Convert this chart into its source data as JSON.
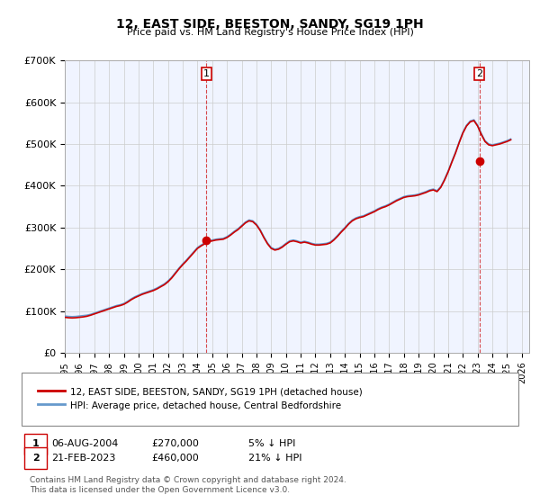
{
  "title": "12, EAST SIDE, BEESTON, SANDY, SG19 1PH",
  "subtitle": "Price paid vs. HM Land Registry's House Price Index (HPI)",
  "ylabel": "",
  "xlabel": "",
  "ylim": [
    0,
    700000
  ],
  "yticks": [
    0,
    100000,
    200000,
    300000,
    400000,
    500000,
    600000,
    700000
  ],
  "ytick_labels": [
    "£0",
    "£100K",
    "£200K",
    "£300K",
    "£400K",
    "£500K",
    "£600K",
    "£700K"
  ],
  "xlim_start": 1995.0,
  "xlim_end": 2026.5,
  "transaction1_x": 2004.6,
  "transaction1_y": 270000,
  "transaction2_x": 2023.12,
  "transaction2_y": 460000,
  "legend_line1": "12, EAST SIDE, BEESTON, SANDY, SG19 1PH (detached house)",
  "legend_line2": "HPI: Average price, detached house, Central Bedfordshire",
  "table_row1": [
    "1",
    "06-AUG-2004",
    "£270,000",
    "5% ↓ HPI"
  ],
  "table_row2": [
    "2",
    "21-FEB-2023",
    "£460,000",
    "21% ↓ HPI"
  ],
  "footnote": "Contains HM Land Registry data © Crown copyright and database right 2024.\nThis data is licensed under the Open Government Licence v3.0.",
  "line_color_red": "#cc0000",
  "line_color_blue": "#6699cc",
  "bg_color": "#f0f4ff",
  "grid_color": "#cccccc",
  "hpi_data_x": [
    1995.0,
    1995.25,
    1995.5,
    1995.75,
    1996.0,
    1996.25,
    1996.5,
    1996.75,
    1997.0,
    1997.25,
    1997.5,
    1997.75,
    1998.0,
    1998.25,
    1998.5,
    1998.75,
    1999.0,
    1999.25,
    1999.5,
    1999.75,
    2000.0,
    2000.25,
    2000.5,
    2000.75,
    2001.0,
    2001.25,
    2001.5,
    2001.75,
    2002.0,
    2002.25,
    2002.5,
    2002.75,
    2003.0,
    2003.25,
    2003.5,
    2003.75,
    2004.0,
    2004.25,
    2004.5,
    2004.75,
    2005.0,
    2005.25,
    2005.5,
    2005.75,
    2006.0,
    2006.25,
    2006.5,
    2006.75,
    2007.0,
    2007.25,
    2007.5,
    2007.75,
    2008.0,
    2008.25,
    2008.5,
    2008.75,
    2009.0,
    2009.25,
    2009.5,
    2009.75,
    2010.0,
    2010.25,
    2010.5,
    2010.75,
    2011.0,
    2011.25,
    2011.5,
    2011.75,
    2012.0,
    2012.25,
    2012.5,
    2012.75,
    2013.0,
    2013.25,
    2013.5,
    2013.75,
    2014.0,
    2014.25,
    2014.5,
    2014.75,
    2015.0,
    2015.25,
    2015.5,
    2015.75,
    2016.0,
    2016.25,
    2016.5,
    2016.75,
    2017.0,
    2017.25,
    2017.5,
    2017.75,
    2018.0,
    2018.25,
    2018.5,
    2018.75,
    2019.0,
    2019.25,
    2019.5,
    2019.75,
    2020.0,
    2020.25,
    2020.5,
    2020.75,
    2021.0,
    2021.25,
    2021.5,
    2021.75,
    2022.0,
    2022.25,
    2022.5,
    2022.75,
    2023.0,
    2023.25,
    2023.5,
    2023.75,
    2024.0,
    2024.25,
    2024.5,
    2024.75,
    2025.0,
    2025.25
  ],
  "hpi_data_y": [
    88000,
    87000,
    86500,
    87000,
    88000,
    89000,
    90000,
    92000,
    95000,
    98000,
    101000,
    104000,
    107000,
    110000,
    113000,
    115000,
    118000,
    123000,
    129000,
    134000,
    138000,
    142000,
    145000,
    148000,
    151000,
    155000,
    160000,
    165000,
    172000,
    181000,
    192000,
    203000,
    213000,
    222000,
    232000,
    242000,
    252000,
    258000,
    263000,
    268000,
    270000,
    272000,
    273000,
    274000,
    278000,
    284000,
    291000,
    297000,
    305000,
    313000,
    318000,
    316000,
    308000,
    295000,
    278000,
    263000,
    252000,
    248000,
    250000,
    255000,
    262000,
    268000,
    270000,
    268000,
    265000,
    267000,
    265000,
    262000,
    260000,
    260000,
    261000,
    262000,
    265000,
    272000,
    281000,
    291000,
    300000,
    310000,
    318000,
    323000,
    326000,
    328000,
    332000,
    336000,
    340000,
    345000,
    349000,
    352000,
    356000,
    361000,
    366000,
    370000,
    374000,
    376000,
    377000,
    378000,
    380000,
    383000,
    386000,
    390000,
    392000,
    388000,
    398000,
    415000,
    435000,
    458000,
    480000,
    505000,
    528000,
    545000,
    555000,
    558000,
    545000,
    525000,
    508000,
    500000,
    498000,
    500000,
    502000,
    505000,
    508000,
    512000
  ],
  "price_data_x": [
    1995.0,
    1995.25,
    1995.5,
    1995.75,
    1996.0,
    1996.25,
    1996.5,
    1996.75,
    1997.0,
    1997.25,
    1997.5,
    1997.75,
    1998.0,
    1998.25,
    1998.5,
    1998.75,
    1999.0,
    1999.25,
    1999.5,
    1999.75,
    2000.0,
    2000.25,
    2000.5,
    2000.75,
    2001.0,
    2001.25,
    2001.5,
    2001.75,
    2002.0,
    2002.25,
    2002.5,
    2002.75,
    2003.0,
    2003.25,
    2003.5,
    2003.75,
    2004.0,
    2004.25,
    2004.5,
    2004.75,
    2005.0,
    2005.25,
    2005.5,
    2005.75,
    2006.0,
    2006.25,
    2006.5,
    2006.75,
    2007.0,
    2007.25,
    2007.5,
    2007.75,
    2008.0,
    2008.25,
    2008.5,
    2008.75,
    2009.0,
    2009.25,
    2009.5,
    2009.75,
    2010.0,
    2010.25,
    2010.5,
    2010.75,
    2011.0,
    2011.25,
    2011.5,
    2011.75,
    2012.0,
    2012.25,
    2012.5,
    2012.75,
    2013.0,
    2013.25,
    2013.5,
    2013.75,
    2014.0,
    2014.25,
    2014.5,
    2014.75,
    2015.0,
    2015.25,
    2015.5,
    2015.75,
    2016.0,
    2016.25,
    2016.5,
    2016.75,
    2017.0,
    2017.25,
    2017.5,
    2017.75,
    2018.0,
    2018.25,
    2018.5,
    2018.75,
    2019.0,
    2019.25,
    2019.5,
    2019.75,
    2020.0,
    2020.25,
    2020.5,
    2020.75,
    2021.0,
    2021.25,
    2021.5,
    2021.75,
    2022.0,
    2022.25,
    2022.5,
    2022.75,
    2023.0,
    2023.25,
    2023.5,
    2023.75,
    2024.0,
    2024.25,
    2024.5,
    2024.75,
    2025.0,
    2025.25
  ],
  "price_data_y": [
    85000,
    84000,
    83500,
    84000,
    85000,
    86000,
    87500,
    90000,
    93000,
    96000,
    99000,
    102000,
    105000,
    108000,
    111000,
    113000,
    116000,
    121000,
    127000,
    132000,
    136000,
    140000,
    143000,
    146000,
    149000,
    153000,
    158000,
    163000,
    170000,
    179000,
    190000,
    201000,
    211000,
    220000,
    230000,
    240000,
    250000,
    256000,
    261000,
    266000,
    268000,
    270000,
    271000,
    272000,
    276000,
    282000,
    289000,
    295000,
    303000,
    311000,
    316000,
    314000,
    306000,
    293000,
    276000,
    261000,
    250000,
    246000,
    248000,
    253000,
    260000,
    266000,
    268000,
    266000,
    263000,
    265000,
    263000,
    260000,
    258000,
    258000,
    259000,
    260000,
    263000,
    270000,
    279000,
    289000,
    298000,
    308000,
    316000,
    321000,
    324000,
    326000,
    330000,
    334000,
    338000,
    343000,
    347000,
    350000,
    354000,
    359000,
    364000,
    368000,
    372000,
    374000,
    375000,
    376000,
    378000,
    381000,
    384000,
    388000,
    390000,
    386000,
    396000,
    413000,
    433000,
    456000,
    478000,
    503000,
    526000,
    543000,
    553000,
    556000,
    543000,
    523000,
    506000,
    498000,
    496000,
    498000,
    500000,
    503000,
    506000,
    510000
  ]
}
